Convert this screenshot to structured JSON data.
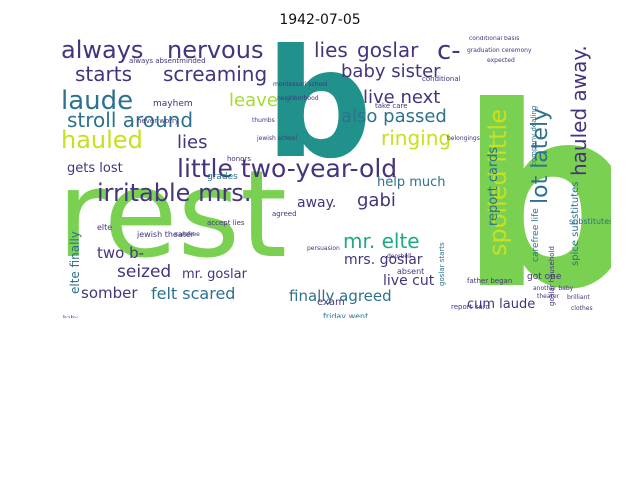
{
  "figure": {
    "title": "1942-07-05"
  },
  "palette": {
    "green": "#7ad151",
    "lightgreen": "#a5db36",
    "yellow": "#c8e020",
    "teal": "#21918c",
    "darkteal": "#2c728e",
    "purple": "#46337e",
    "darkpurple": "#440154",
    "violet": "#3b528b",
    "seagreen": "#22a884",
    "mint": "#5ec962"
  },
  "cloud": {
    "words": [
      {
        "text": "rest"
      },
      {
        "text": "b"
      },
      {
        "text": "b"
      },
      {
        "text": "little two-year-old"
      },
      {
        "text": "always"
      },
      {
        "text": "nervous"
      },
      {
        "text": "lies"
      },
      {
        "text": "goslar"
      },
      {
        "text": "c-"
      },
      {
        "text": "starts"
      },
      {
        "text": "screaming"
      },
      {
        "text": "baby sister"
      },
      {
        "text": "laude"
      },
      {
        "text": "leave"
      },
      {
        "text": "live next"
      },
      {
        "text": "hauled"
      },
      {
        "text": "stroll around"
      },
      {
        "text": "also passed"
      },
      {
        "text": "lies"
      },
      {
        "text": "ringing"
      },
      {
        "text": "spoiled little"
      },
      {
        "text": "lot lately"
      },
      {
        "text": "hauled away."
      },
      {
        "text": "irritable mrs."
      },
      {
        "text": "gets lost"
      },
      {
        "text": "report cards"
      },
      {
        "text": "help much"
      },
      {
        "text": "gabi"
      },
      {
        "text": "mr. elte"
      },
      {
        "text": "away."
      },
      {
        "text": "two b-"
      },
      {
        "text": "mr. goslar"
      },
      {
        "text": "mrs. goslar"
      },
      {
        "text": "live cut"
      },
      {
        "text": "seized"
      },
      {
        "text": "elte finally"
      },
      {
        "text": "somber"
      },
      {
        "text": "felt scared"
      },
      {
        "text": "finally agreed"
      },
      {
        "text": "cum laude"
      },
      {
        "text": "spice substitutes"
      },
      {
        "text": "substitutes"
      },
      {
        "text": "carefree life"
      },
      {
        "text": "exam"
      },
      {
        "text": "friday went"
      },
      {
        "text": "mayhem"
      },
      {
        "text": "grades"
      },
      {
        "text": "always absentminded"
      },
      {
        "text": "never worry"
      },
      {
        "text": "honors"
      },
      {
        "text": "company dealing"
      },
      {
        "text": "goslar starts"
      },
      {
        "text": "report card"
      },
      {
        "text": "got one"
      },
      {
        "text": "goslar household"
      },
      {
        "text": "graduation ceremony"
      },
      {
        "text": "conditional basis"
      },
      {
        "text": "take care"
      },
      {
        "text": "jewish theater"
      },
      {
        "text": "father began"
      },
      {
        "text": "accept lies"
      },
      {
        "text": "absent"
      },
      {
        "text": "elte"
      },
      {
        "text": "agreed"
      },
      {
        "text": "conditional"
      },
      {
        "text": "baby"
      },
      {
        "text": "another baby"
      },
      {
        "text": "carefree"
      },
      {
        "text": "doorbell"
      },
      {
        "text": "neighborhood"
      },
      {
        "text": "thumbs"
      },
      {
        "text": "persuasion"
      },
      {
        "text": "montessori school"
      },
      {
        "text": "jewish school"
      },
      {
        "text": "brilliant"
      },
      {
        "text": "clothes"
      },
      {
        "text": "theater"
      },
      {
        "text": "belongings"
      },
      {
        "text": "expected"
      }
    ]
  }
}
